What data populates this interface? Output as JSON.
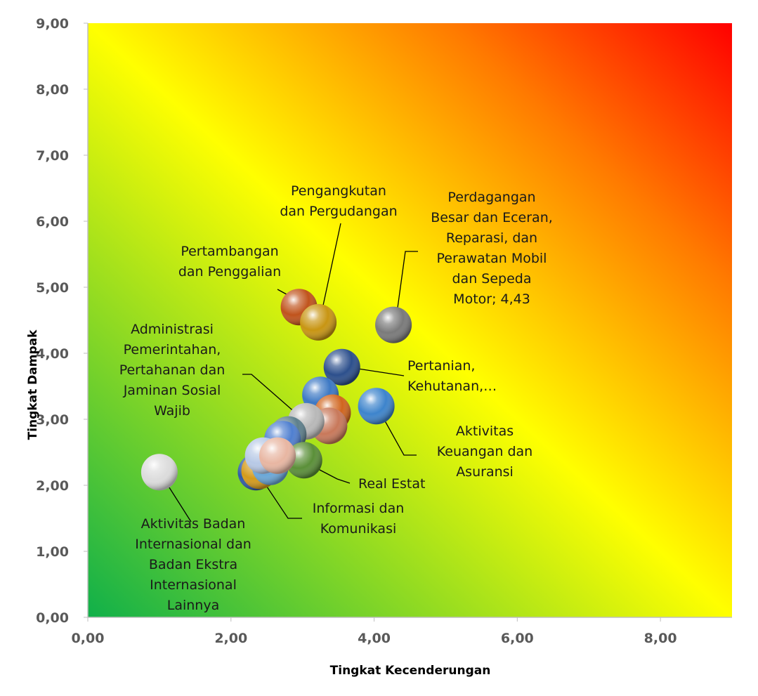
{
  "chart_data": {
    "type": "scatter",
    "title": "",
    "xlabel": "Tingkat Kecenderungan",
    "ylabel": "Tingkat Dampak",
    "xlim": [
      0,
      9
    ],
    "ylim": [
      0,
      9
    ],
    "x_ticks": [
      "0,00",
      "2,00",
      "4,00",
      "6,00",
      "8,00"
    ],
    "y_ticks": [
      "0,00",
      "1,00",
      "2,00",
      "3,00",
      "4,00",
      "5,00",
      "6,00",
      "7,00",
      "8,00",
      "9,00"
    ],
    "background": "gradient green (bottom-left) to yellow to red (top-right)",
    "grid": false,
    "legend": "none",
    "points": [
      {
        "x": 2.95,
        "y": 4.7,
        "color": "#c0531c"
      },
      {
        "x": 3.22,
        "y": 4.47,
        "color": "#c89512"
      },
      {
        "x": 4.27,
        "y": 4.43,
        "color": "#7a7a7a"
      },
      {
        "x": 3.55,
        "y": 3.79,
        "color": "#2c4f8c"
      },
      {
        "x": 3.25,
        "y": 3.37,
        "color": "#3c78c4"
      },
      {
        "x": 3.42,
        "y": 3.1,
        "color": "#d0651e"
      },
      {
        "x": 4.03,
        "y": 3.2,
        "color": "#3d84cc"
      },
      {
        "x": 3.37,
        "y": 2.9,
        "color": "#c8785a"
      },
      {
        "x": 3.05,
        "y": 2.97,
        "color": "#b8b8b8"
      },
      {
        "x": 2.8,
        "y": 2.77,
        "color": "#5d7f8c"
      },
      {
        "x": 2.72,
        "y": 2.7,
        "color": "#4f7fd0"
      },
      {
        "x": 3.02,
        "y": 2.38,
        "color": "#5a8f38"
      },
      {
        "x": 2.35,
        "y": 2.2,
        "color": "#2f5aa8"
      },
      {
        "x": 2.4,
        "y": 2.22,
        "color": "#d49a1a"
      },
      {
        "x": 2.55,
        "y": 2.28,
        "color": "#6aa7d8"
      },
      {
        "x": 2.45,
        "y": 2.45,
        "color": "#b7c9e6"
      },
      {
        "x": 2.65,
        "y": 2.45,
        "color": "#e8b6a2"
      },
      {
        "x": 1.0,
        "y": 2.2,
        "color": "#dcdcdc"
      }
    ],
    "annotations": [
      {
        "text": [
          "Pengangkutan",
          "dan Pergudangan"
        ]
      },
      {
        "text": [
          "Perdagangan",
          "Besar dan Eceran,",
          "Reparasi, dan",
          "Perawatan Mobil",
          "dan Sepeda",
          "Motor; 4,43"
        ]
      },
      {
        "text": [
          "Pertambangan",
          "dan Penggalian"
        ]
      },
      {
        "text": [
          "Administrasi",
          "Pemerintahan,",
          "Pertahanan dan",
          "Jaminan Sosial",
          "Wajib"
        ]
      },
      {
        "text": [
          "Pertanian,",
          "Kehutanan,…"
        ]
      },
      {
        "text": [
          "Aktivitas",
          "Keuangan dan",
          "Asuransi"
        ]
      },
      {
        "text": [
          "Real Estat"
        ]
      },
      {
        "text": [
          "Informasi dan",
          "Komunikasi"
        ]
      },
      {
        "text": [
          "Aktivitas Badan",
          "Internasional dan",
          "Badan Ekstra",
          "Internasional",
          "Lainnya"
        ]
      }
    ]
  },
  "colors": {
    "grad_green": "#10b04a",
    "grad_yellow": "#ffff00",
    "grad_orange": "#ff7a00",
    "grad_red": "#ff0000",
    "axis": "#bfbfbf"
  }
}
